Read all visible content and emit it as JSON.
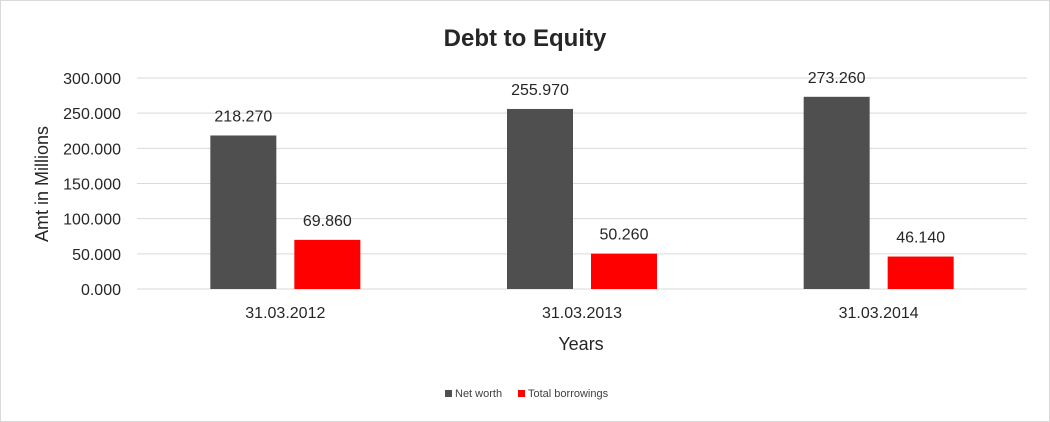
{
  "chart_data": {
    "type": "bar",
    "title": "Debt to Equity",
    "xlabel": "Years",
    "ylabel": "Amt in Millions",
    "categories": [
      "31.03.2012",
      "31.03.2013",
      "31.03.2014"
    ],
    "series": [
      {
        "name": "Net worth",
        "values": [
          218.27,
          255.97,
          273.26
        ],
        "labels": [
          "218.270",
          "255.970",
          "273.260"
        ],
        "color": "#4f4f4f"
      },
      {
        "name": "Total borrowings",
        "values": [
          69.86,
          50.26,
          46.14
        ],
        "labels": [
          "69.860",
          "50.260",
          "46.140"
        ],
        "color": "#ff0000"
      }
    ],
    "ylim": [
      0,
      300
    ],
    "yticks": [
      0,
      50,
      100,
      150,
      200,
      250,
      300
    ],
    "ytick_labels": [
      "0.000",
      "50.000",
      "100.000",
      "150.000",
      "200.000",
      "250.000",
      "300.000"
    ],
    "grid": true,
    "legend_position": "bottom"
  }
}
